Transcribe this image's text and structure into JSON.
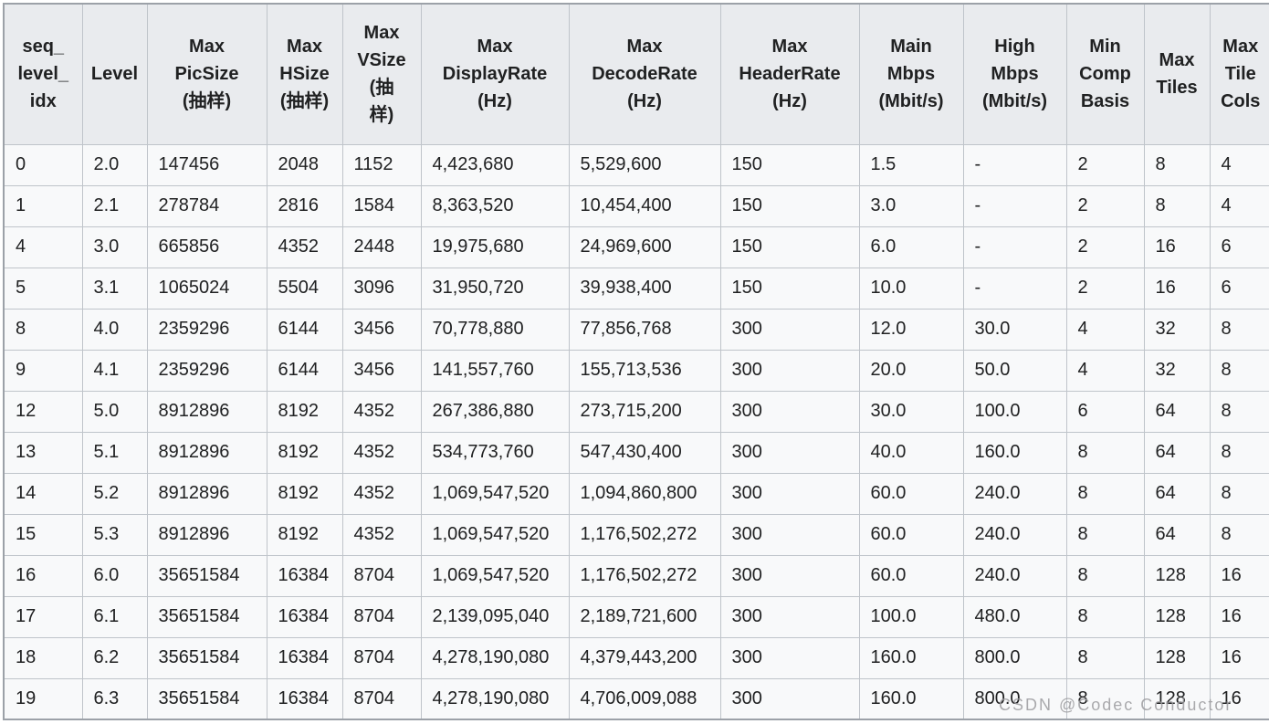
{
  "colors": {
    "header_bg": "#e9ebee",
    "row_bg": "#f8f9fa",
    "border": "#bfc4ca",
    "outer_border": "#9ca1a8",
    "text": "#202122",
    "watermark": "#9c9c9f"
  },
  "watermark": {
    "text": "CSDN @Codec Conductor"
  },
  "table": {
    "columns": [
      {
        "id": "seq_level_idx",
        "label": "seq_\nlevel_\nidx"
      },
      {
        "id": "level",
        "label": "Level"
      },
      {
        "id": "max_picsize",
        "label": "Max\nPicSize\n(抽样)"
      },
      {
        "id": "max_hsize",
        "label": "Max\nHSize\n(抽样)"
      },
      {
        "id": "max_vsize",
        "label": "Max\nVSize\n(抽\n样)"
      },
      {
        "id": "max_displayrate",
        "label": "Max\nDisplayRate\n(Hz)"
      },
      {
        "id": "max_decoderate",
        "label": "Max\nDecodeRate\n(Hz)"
      },
      {
        "id": "max_headerrate",
        "label": "Max\nHeaderRate\n(Hz)"
      },
      {
        "id": "main_mbps",
        "label": "Main\nMbps\n(Mbit/s)"
      },
      {
        "id": "high_mbps",
        "label": "High\nMbps\n(Mbit/s)"
      },
      {
        "id": "min_comp_basis",
        "label": "Min\nComp\nBasis"
      },
      {
        "id": "max_tiles",
        "label": "Max\nTiles"
      },
      {
        "id": "max_tile_cols",
        "label": "Max\nTile\nCols"
      }
    ],
    "rows": [
      [
        "0",
        "2.0",
        "147456",
        "2048",
        "1152",
        "4,423,680",
        "5,529,600",
        "150",
        "1.5",
        "-",
        "2",
        "8",
        "4"
      ],
      [
        "1",
        "2.1",
        "278784",
        "2816",
        "1584",
        "8,363,520",
        "10,454,400",
        "150",
        "3.0",
        "-",
        "2",
        "8",
        "4"
      ],
      [
        "4",
        "3.0",
        "665856",
        "4352",
        "2448",
        "19,975,680",
        "24,969,600",
        "150",
        "6.0",
        "-",
        "2",
        "16",
        "6"
      ],
      [
        "5",
        "3.1",
        "1065024",
        "5504",
        "3096",
        "31,950,720",
        "39,938,400",
        "150",
        "10.0",
        "-",
        "2",
        "16",
        "6"
      ],
      [
        "8",
        "4.0",
        "2359296",
        "6144",
        "3456",
        "70,778,880",
        "77,856,768",
        "300",
        "12.0",
        "30.0",
        "4",
        "32",
        "8"
      ],
      [
        "9",
        "4.1",
        "2359296",
        "6144",
        "3456",
        "141,557,760",
        "155,713,536",
        "300",
        "20.0",
        "50.0",
        "4",
        "32",
        "8"
      ],
      [
        "12",
        "5.0",
        "8912896",
        "8192",
        "4352",
        "267,386,880",
        "273,715,200",
        "300",
        "30.0",
        "100.0",
        "6",
        "64",
        "8"
      ],
      [
        "13",
        "5.1",
        "8912896",
        "8192",
        "4352",
        "534,773,760",
        "547,430,400",
        "300",
        "40.0",
        "160.0",
        "8",
        "64",
        "8"
      ],
      [
        "14",
        "5.2",
        "8912896",
        "8192",
        "4352",
        "1,069,547,520",
        "1,094,860,800",
        "300",
        "60.0",
        "240.0",
        "8",
        "64",
        "8"
      ],
      [
        "15",
        "5.3",
        "8912896",
        "8192",
        "4352",
        "1,069,547,520",
        "1,176,502,272",
        "300",
        "60.0",
        "240.0",
        "8",
        "64",
        "8"
      ],
      [
        "16",
        "6.0",
        "35651584",
        "16384",
        "8704",
        "1,069,547,520",
        "1,176,502,272",
        "300",
        "60.0",
        "240.0",
        "8",
        "128",
        "16"
      ],
      [
        "17",
        "6.1",
        "35651584",
        "16384",
        "8704",
        "2,139,095,040",
        "2,189,721,600",
        "300",
        "100.0",
        "480.0",
        "8",
        "128",
        "16"
      ],
      [
        "18",
        "6.2",
        "35651584",
        "16384",
        "8704",
        "4,278,190,080",
        "4,379,443,200",
        "300",
        "160.0",
        "800.0",
        "8",
        "128",
        "16"
      ],
      [
        "19",
        "6.3",
        "35651584",
        "16384",
        "8704",
        "4,278,190,080",
        "4,706,009,088",
        "300",
        "160.0",
        "800.0",
        "8",
        "128",
        "16"
      ]
    ]
  }
}
